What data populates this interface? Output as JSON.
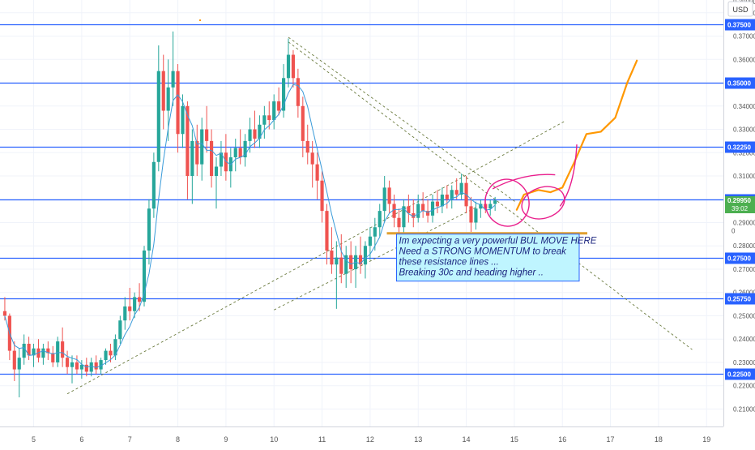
{
  "currency_label": "USD",
  "chart_data": {
    "type": "candlestick",
    "title": "",
    "xlabel": "",
    "ylabel": "",
    "ylim": [
      0.2025,
      0.3855
    ],
    "xlim": [
      4.3,
      19.35
    ],
    "x_ticks": [
      "5",
      "6",
      "7",
      "8",
      "9",
      "10",
      "11",
      "12",
      "13",
      "14",
      "15",
      "16",
      "17",
      "18",
      "19"
    ],
    "y_ticks": [
      "0.21000",
      "0.22000",
      "0.23000",
      "0.24000",
      "0.25000",
      "0.26000",
      "0.27000",
      "0.28000",
      "0.29000",
      "0.30000",
      "0.31000",
      "0.32000",
      "0.33000",
      "0.34000",
      "0.35000",
      "0.36000",
      "0.37000",
      "0.38000"
    ],
    "top_cut_tick": "0.39000",
    "grid": true,
    "horizontal_levels": [
      {
        "price": 0.375,
        "label": "0.37500"
      },
      {
        "price": 0.35,
        "label": "0.35000"
      },
      {
        "price": 0.3225,
        "label": "0.32250"
      },
      {
        "price": 0.3,
        "label": "0.30000"
      },
      {
        "price": 0.275,
        "label": "0.27500"
      },
      {
        "price": 0.2575,
        "label": "0.25750"
      },
      {
        "price": 0.225,
        "label": "0.22500"
      }
    ],
    "last_price": {
      "price": 0.2995,
      "label": "0.29950",
      "countdown": "39:02"
    },
    "partial_price_label": "0",
    "trendlines": [
      {
        "from": [
          5.7,
          0.2165
        ],
        "to": [
          16.05,
          0.3335
        ],
        "style": "dashed"
      },
      {
        "from": [
          10.0,
          0.2525
        ],
        "to": [
          14.2,
          0.2965
        ],
        "style": "dashed"
      },
      {
        "from": [
          10.3,
          0.3695
        ],
        "to": [
          15.05,
          0.2985
        ],
        "style": "dashed"
      },
      {
        "from": [
          10.3,
          0.3675
        ],
        "to": [
          18.7,
          0.2355
        ],
        "style": "dashed"
      }
    ],
    "projection_path": [
      [
        15.05,
        0.2955
      ],
      [
        15.2,
        0.302
      ],
      [
        15.5,
        0.304
      ],
      [
        15.75,
        0.303
      ],
      [
        16.0,
        0.305
      ],
      [
        16.25,
        0.316
      ],
      [
        16.5,
        0.328
      ],
      [
        16.8,
        0.329
      ],
      [
        17.1,
        0.335
      ],
      [
        17.35,
        0.35
      ],
      [
        17.55,
        0.3595
      ]
    ],
    "annotation": {
      "anchor_price": 0.2854,
      "x_start": 12.55,
      "x_end": 16.35,
      "lines": [
        "Im expecting a very powerful BUL MOVE HERE",
        "Need a STRONG MOMENTUM to break",
        "these resistance lines ...",
        "Breaking 30c and heading higher .."
      ]
    },
    "candles": [
      {
        "x": 4.4,
        "o": 0.252,
        "h": 0.258,
        "l": 0.248,
        "c": 0.25
      },
      {
        "x": 4.5,
        "o": 0.25,
        "h": 0.251,
        "l": 0.231,
        "c": 0.235
      },
      {
        "x": 4.6,
        "o": 0.235,
        "h": 0.239,
        "l": 0.222,
        "c": 0.227
      },
      {
        "x": 4.7,
        "o": 0.227,
        "h": 0.236,
        "l": 0.215,
        "c": 0.232
      },
      {
        "x": 4.8,
        "o": 0.232,
        "h": 0.242,
        "l": 0.229,
        "c": 0.238
      },
      {
        "x": 4.9,
        "o": 0.238,
        "h": 0.241,
        "l": 0.231,
        "c": 0.233
      },
      {
        "x": 5.0,
        "o": 0.233,
        "h": 0.238,
        "l": 0.228,
        "c": 0.236
      },
      {
        "x": 5.1,
        "o": 0.236,
        "h": 0.24,
        "l": 0.23,
        "c": 0.232
      },
      {
        "x": 5.2,
        "o": 0.232,
        "h": 0.238,
        "l": 0.229,
        "c": 0.236
      },
      {
        "x": 5.3,
        "o": 0.236,
        "h": 0.239,
        "l": 0.231,
        "c": 0.234
      },
      {
        "x": 5.4,
        "o": 0.234,
        "h": 0.237,
        "l": 0.228,
        "c": 0.23
      },
      {
        "x": 5.5,
        "o": 0.23,
        "h": 0.241,
        "l": 0.228,
        "c": 0.239
      },
      {
        "x": 5.6,
        "o": 0.239,
        "h": 0.245,
        "l": 0.228,
        "c": 0.232
      },
      {
        "x": 5.7,
        "o": 0.232,
        "h": 0.235,
        "l": 0.225,
        "c": 0.228
      },
      {
        "x": 5.8,
        "o": 0.228,
        "h": 0.233,
        "l": 0.221,
        "c": 0.23
      },
      {
        "x": 5.9,
        "o": 0.23,
        "h": 0.233,
        "l": 0.225,
        "c": 0.227
      },
      {
        "x": 6.0,
        "o": 0.227,
        "h": 0.231,
        "l": 0.223,
        "c": 0.229
      },
      {
        "x": 6.1,
        "o": 0.229,
        "h": 0.232,
        "l": 0.224,
        "c": 0.226
      },
      {
        "x": 6.2,
        "o": 0.226,
        "h": 0.232,
        "l": 0.224,
        "c": 0.23
      },
      {
        "x": 6.3,
        "o": 0.23,
        "h": 0.233,
        "l": 0.225,
        "c": 0.227
      },
      {
        "x": 6.4,
        "o": 0.227,
        "h": 0.232,
        "l": 0.225,
        "c": 0.231
      },
      {
        "x": 6.5,
        "o": 0.231,
        "h": 0.236,
        "l": 0.229,
        "c": 0.235
      },
      {
        "x": 6.6,
        "o": 0.235,
        "h": 0.238,
        "l": 0.23,
        "c": 0.233
      },
      {
        "x": 6.7,
        "o": 0.233,
        "h": 0.242,
        "l": 0.231,
        "c": 0.24
      },
      {
        "x": 6.8,
        "o": 0.24,
        "h": 0.25,
        "l": 0.238,
        "c": 0.248
      },
      {
        "x": 6.9,
        "o": 0.248,
        "h": 0.258,
        "l": 0.244,
        "c": 0.254
      },
      {
        "x": 7.0,
        "o": 0.254,
        "h": 0.262,
        "l": 0.248,
        "c": 0.252
      },
      {
        "x": 7.1,
        "o": 0.252,
        "h": 0.26,
        "l": 0.249,
        "c": 0.258
      },
      {
        "x": 7.2,
        "o": 0.258,
        "h": 0.264,
        "l": 0.252,
        "c": 0.256
      },
      {
        "x": 7.3,
        "o": 0.256,
        "h": 0.28,
        "l": 0.254,
        "c": 0.278
      },
      {
        "x": 7.4,
        "o": 0.278,
        "h": 0.3,
        "l": 0.272,
        "c": 0.296
      },
      {
        "x": 7.5,
        "o": 0.296,
        "h": 0.32,
        "l": 0.292,
        "c": 0.316
      },
      {
        "x": 7.6,
        "o": 0.316,
        "h": 0.366,
        "l": 0.312,
        "c": 0.355
      },
      {
        "x": 7.7,
        "o": 0.355,
        "h": 0.362,
        "l": 0.33,
        "c": 0.338
      },
      {
        "x": 7.8,
        "o": 0.338,
        "h": 0.36,
        "l": 0.325,
        "c": 0.348
      },
      {
        "x": 7.9,
        "o": 0.348,
        "h": 0.372,
        "l": 0.34,
        "c": 0.355
      },
      {
        "x": 8.0,
        "o": 0.355,
        "h": 0.358,
        "l": 0.32,
        "c": 0.328
      },
      {
        "x": 8.1,
        "o": 0.328,
        "h": 0.345,
        "l": 0.322,
        "c": 0.34
      },
      {
        "x": 8.2,
        "o": 0.34,
        "h": 0.342,
        "l": 0.3,
        "c": 0.31
      },
      {
        "x": 8.3,
        "o": 0.31,
        "h": 0.33,
        "l": 0.298,
        "c": 0.325
      },
      {
        "x": 8.4,
        "o": 0.325,
        "h": 0.332,
        "l": 0.31,
        "c": 0.315
      },
      {
        "x": 8.5,
        "o": 0.315,
        "h": 0.335,
        "l": 0.308,
        "c": 0.33
      },
      {
        "x": 8.6,
        "o": 0.33,
        "h": 0.34,
        "l": 0.32,
        "c": 0.325
      },
      {
        "x": 8.7,
        "o": 0.325,
        "h": 0.33,
        "l": 0.305,
        "c": 0.31
      },
      {
        "x": 8.8,
        "o": 0.31,
        "h": 0.318,
        "l": 0.296,
        "c": 0.314
      },
      {
        "x": 8.9,
        "o": 0.314,
        "h": 0.325,
        "l": 0.31,
        "c": 0.32
      },
      {
        "x": 9.0,
        "o": 0.32,
        "h": 0.328,
        "l": 0.308,
        "c": 0.312
      },
      {
        "x": 9.1,
        "o": 0.312,
        "h": 0.322,
        "l": 0.305,
        "c": 0.318
      },
      {
        "x": 9.2,
        "o": 0.318,
        "h": 0.326,
        "l": 0.312,
        "c": 0.322
      },
      {
        "x": 9.3,
        "o": 0.322,
        "h": 0.33,
        "l": 0.315,
        "c": 0.318
      },
      {
        "x": 9.4,
        "o": 0.318,
        "h": 0.328,
        "l": 0.314,
        "c": 0.325
      },
      {
        "x": 9.5,
        "o": 0.325,
        "h": 0.335,
        "l": 0.32,
        "c": 0.33
      },
      {
        "x": 9.6,
        "o": 0.33,
        "h": 0.338,
        "l": 0.322,
        "c": 0.326
      },
      {
        "x": 9.7,
        "o": 0.326,
        "h": 0.336,
        "l": 0.322,
        "c": 0.332
      },
      {
        "x": 9.8,
        "o": 0.332,
        "h": 0.34,
        "l": 0.326,
        "c": 0.336
      },
      {
        "x": 9.9,
        "o": 0.336,
        "h": 0.342,
        "l": 0.33,
        "c": 0.334
      },
      {
        "x": 10.0,
        "o": 0.334,
        "h": 0.345,
        "l": 0.33,
        "c": 0.342
      },
      {
        "x": 10.1,
        "o": 0.342,
        "h": 0.348,
        "l": 0.336,
        "c": 0.338
      },
      {
        "x": 10.2,
        "o": 0.338,
        "h": 0.358,
        "l": 0.335,
        "c": 0.352
      },
      {
        "x": 10.3,
        "o": 0.352,
        "h": 0.369,
        "l": 0.348,
        "c": 0.362
      },
      {
        "x": 10.4,
        "o": 0.362,
        "h": 0.364,
        "l": 0.348,
        "c": 0.352
      },
      {
        "x": 10.5,
        "o": 0.352,
        "h": 0.356,
        "l": 0.335,
        "c": 0.34
      },
      {
        "x": 10.6,
        "o": 0.34,
        "h": 0.344,
        "l": 0.318,
        "c": 0.325
      },
      {
        "x": 10.7,
        "o": 0.325,
        "h": 0.332,
        "l": 0.315,
        "c": 0.32
      },
      {
        "x": 10.8,
        "o": 0.32,
        "h": 0.325,
        "l": 0.305,
        "c": 0.315
      },
      {
        "x": 10.9,
        "o": 0.315,
        "h": 0.32,
        "l": 0.3,
        "c": 0.308
      },
      {
        "x": 11.0,
        "o": 0.308,
        "h": 0.312,
        "l": 0.29,
        "c": 0.295
      },
      {
        "x": 11.1,
        "o": 0.295,
        "h": 0.298,
        "l": 0.272,
        "c": 0.278
      },
      {
        "x": 11.2,
        "o": 0.278,
        "h": 0.288,
        "l": 0.268,
        "c": 0.272
      },
      {
        "x": 11.3,
        "o": 0.272,
        "h": 0.282,
        "l": 0.253,
        "c": 0.275
      },
      {
        "x": 11.4,
        "o": 0.275,
        "h": 0.285,
        "l": 0.264,
        "c": 0.268
      },
      {
        "x": 11.5,
        "o": 0.268,
        "h": 0.28,
        "l": 0.262,
        "c": 0.276
      },
      {
        "x": 11.6,
        "o": 0.276,
        "h": 0.282,
        "l": 0.264,
        "c": 0.27
      },
      {
        "x": 11.7,
        "o": 0.27,
        "h": 0.28,
        "l": 0.262,
        "c": 0.276
      },
      {
        "x": 11.8,
        "o": 0.276,
        "h": 0.284,
        "l": 0.268,
        "c": 0.272
      },
      {
        "x": 11.9,
        "o": 0.272,
        "h": 0.282,
        "l": 0.266,
        "c": 0.28
      },
      {
        "x": 12.0,
        "o": 0.28,
        "h": 0.288,
        "l": 0.274,
        "c": 0.284
      },
      {
        "x": 12.1,
        "o": 0.284,
        "h": 0.292,
        "l": 0.278,
        "c": 0.288
      },
      {
        "x": 12.2,
        "o": 0.288,
        "h": 0.298,
        "l": 0.284,
        "c": 0.295
      },
      {
        "x": 12.3,
        "o": 0.295,
        "h": 0.31,
        "l": 0.29,
        "c": 0.305
      },
      {
        "x": 12.4,
        "o": 0.305,
        "h": 0.308,
        "l": 0.294,
        "c": 0.298
      },
      {
        "x": 12.5,
        "o": 0.298,
        "h": 0.302,
        "l": 0.288,
        "c": 0.292
      },
      {
        "x": 12.6,
        "o": 0.292,
        "h": 0.296,
        "l": 0.284,
        "c": 0.288
      },
      {
        "x": 12.7,
        "o": 0.288,
        "h": 0.3,
        "l": 0.285,
        "c": 0.297
      },
      {
        "x": 12.8,
        "o": 0.297,
        "h": 0.302,
        "l": 0.29,
        "c": 0.294
      },
      {
        "x": 12.9,
        "o": 0.294,
        "h": 0.3,
        "l": 0.288,
        "c": 0.292
      },
      {
        "x": 13.0,
        "o": 0.292,
        "h": 0.302,
        "l": 0.29,
        "c": 0.298
      },
      {
        "x": 13.1,
        "o": 0.298,
        "h": 0.303,
        "l": 0.292,
        "c": 0.295
      },
      {
        "x": 13.2,
        "o": 0.295,
        "h": 0.3,
        "l": 0.29,
        "c": 0.293
      },
      {
        "x": 13.3,
        "o": 0.293,
        "h": 0.302,
        "l": 0.29,
        "c": 0.299
      },
      {
        "x": 13.4,
        "o": 0.299,
        "h": 0.304,
        "l": 0.294,
        "c": 0.297
      },
      {
        "x": 13.5,
        "o": 0.297,
        "h": 0.305,
        "l": 0.294,
        "c": 0.302
      },
      {
        "x": 13.6,
        "o": 0.302,
        "h": 0.306,
        "l": 0.296,
        "c": 0.3
      },
      {
        "x": 13.7,
        "o": 0.3,
        "h": 0.306,
        "l": 0.296,
        "c": 0.304
      },
      {
        "x": 13.8,
        "o": 0.304,
        "h": 0.309,
        "l": 0.3,
        "c": 0.302
      },
      {
        "x": 13.9,
        "o": 0.302,
        "h": 0.311,
        "l": 0.3,
        "c": 0.307
      },
      {
        "x": 14.0,
        "o": 0.307,
        "h": 0.31,
        "l": 0.294,
        "c": 0.297
      },
      {
        "x": 14.1,
        "o": 0.297,
        "h": 0.301,
        "l": 0.286,
        "c": 0.29
      },
      {
        "x": 14.2,
        "o": 0.29,
        "h": 0.299,
        "l": 0.287,
        "c": 0.296
      },
      {
        "x": 14.3,
        "o": 0.296,
        "h": 0.3,
        "l": 0.292,
        "c": 0.298
      },
      {
        "x": 14.4,
        "o": 0.298,
        "h": 0.301,
        "l": 0.294,
        "c": 0.296
      },
      {
        "x": 14.5,
        "o": 0.296,
        "h": 0.3,
        "l": 0.293,
        "c": 0.298
      },
      {
        "x": 14.6,
        "o": 0.298,
        "h": 0.301,
        "l": 0.295,
        "c": 0.2995
      }
    ]
  },
  "colors": {
    "up": "#26a69a",
    "down": "#ef5350",
    "level_line": "#2962ff",
    "ma_line": "#3a9bd9",
    "trendline": "#6b7b3f",
    "projection": "#ff9800",
    "marker": "#e91e8c",
    "annotation_fill": "#bff5ff",
    "annotation_border": "#2962ff",
    "annotation_text": "#1a237e",
    "anchor_line": "#e0a030",
    "last_price_bg": "#4caf50",
    "axis_text": "#555555",
    "grid": "#f0f3fa"
  }
}
